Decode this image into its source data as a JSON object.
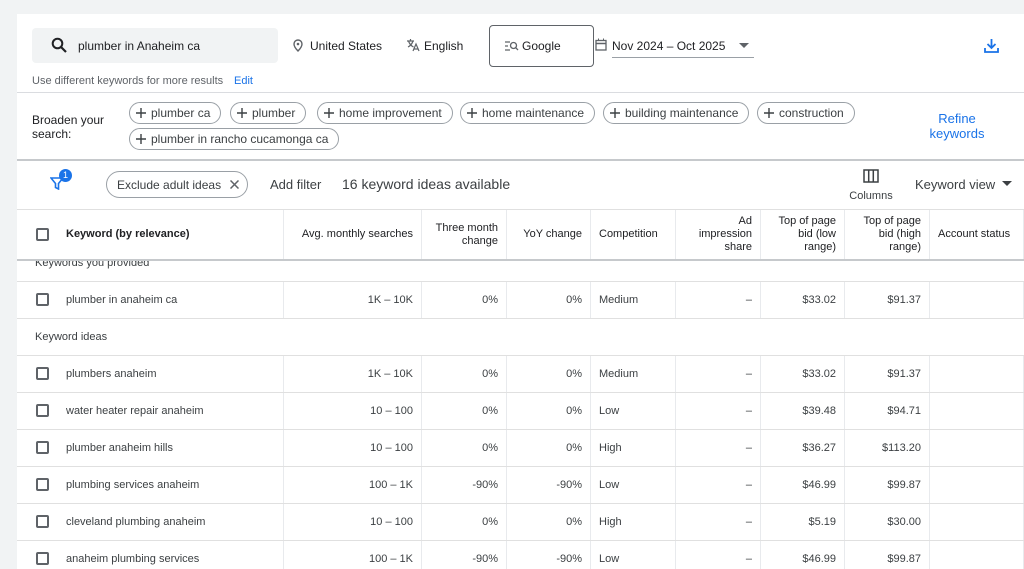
{
  "search": {
    "query": "plumber in Anaheim ca",
    "location": "United States",
    "language": "English",
    "engine": "Google",
    "date_range": "Nov 2024 – Oct 2025",
    "hint": "Use different keywords for more results",
    "hint_link": "Edit"
  },
  "broaden": {
    "label": "Broaden your search:",
    "chips": [
      "plumber ca",
      "plumber",
      "home improvement",
      "home maintenance",
      "building maintenance",
      "construction",
      "plumber in rancho cucamonga ca"
    ],
    "refine": "Refine keywords"
  },
  "toolbar": {
    "filter_badge": "1",
    "exclude_chip": "Exclude adult ideas",
    "add_filter": "Add filter",
    "count": "16 keyword ideas available",
    "columns": "Columns",
    "view": "Keyword view"
  },
  "table": {
    "headers": [
      "Keyword (by relevance)",
      "Avg. monthly searches",
      "Three month change",
      "YoY change",
      "Competition",
      "Ad impression share",
      "Top of page bid (low range)",
      "Top of page bid (high range)",
      "Account status"
    ],
    "sections": [
      {
        "title": "Keywords you provided",
        "rows": [
          [
            "plumber in anaheim ca",
            "1K – 10K",
            "0%",
            "0%",
            "Medium",
            "–",
            "$33.02",
            "$91.37"
          ]
        ]
      },
      {
        "title": "Keyword ideas",
        "rows": [
          [
            "plumbers anaheim",
            "1K – 10K",
            "0%",
            "0%",
            "Medium",
            "–",
            "$33.02",
            "$91.37"
          ],
          [
            "water heater repair anaheim",
            "10 – 100",
            "0%",
            "0%",
            "Low",
            "–",
            "$39.48",
            "$94.71"
          ],
          [
            "plumber anaheim hills",
            "10 – 100",
            "0%",
            "0%",
            "High",
            "–",
            "$36.27",
            "$113.20"
          ],
          [
            "plumbing services anaheim",
            "100 – 1K",
            "-90%",
            "-90%",
            "Low",
            "–",
            "$46.99",
            "$99.87"
          ],
          [
            "cleveland plumbing anaheim",
            "10 – 100",
            "0%",
            "0%",
            "High",
            "–",
            "$5.19",
            "$30.00"
          ],
          [
            "anaheim plumbing services",
            "100 – 1K",
            "-90%",
            "-90%",
            "Low",
            "–",
            "$46.99",
            "$99.87"
          ]
        ]
      }
    ]
  }
}
